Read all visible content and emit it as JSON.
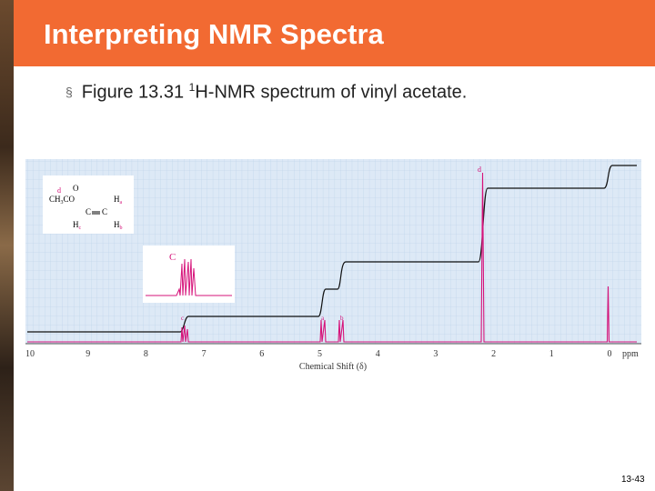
{
  "header": {
    "title": "Interpreting NMR Spectra"
  },
  "bullet": {
    "marker": "§",
    "text_before": "Figure 13.31 ",
    "superscript": "1",
    "text_after": "H-NMR spectrum of vinyl acetate."
  },
  "figure": {
    "x_ticks": [
      "10",
      "9",
      "8",
      "7",
      "6",
      "5",
      "4",
      "3",
      "2",
      "1",
      "0"
    ],
    "unit": "ppm",
    "x_axis_label": "Chemical Shift (δ)",
    "peak_labels": {
      "c": "c",
      "a": "a",
      "b": "b",
      "d": "d"
    },
    "inset_label": "C",
    "structure": {
      "label_d": "d",
      "oxygen": "O",
      "methyl": "CH",
      "methyl_sub": "3",
      "carbonyl": "CO",
      "c1": "C",
      "c2": "C",
      "ha": "H",
      "ha_sub": "a",
      "hb": "H",
      "hb_sub": "b",
      "hc": "H",
      "hc_sub": "c"
    }
  },
  "footer": {
    "page_number": "13-43"
  }
}
